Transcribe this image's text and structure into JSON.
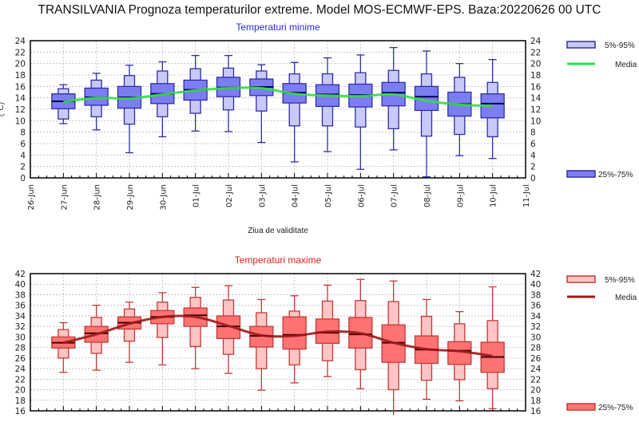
{
  "title": "TRANSILVANIA  Prognoza temperaturilor extreme.  Model MOS-ECMWF-EPS. Baza:20220626 00 UTC",
  "x_dates": [
    "26-Jun",
    "27-Jun",
    "28-Jun",
    "29-Jun",
    "30-Jun",
    "01-Jul",
    "02-Jul",
    "03-Jul",
    "04-Jul",
    "05-Jul",
    "06-Jul",
    "07-Jul",
    "08-Jul",
    "09-Jul",
    "10-Jul",
    "11-Jul"
  ],
  "chart_data": [
    {
      "type": "box",
      "title": "Temperaturi minime",
      "xlabel": "Ziua de validitate",
      "ylabel": "(°C)",
      "ylim": [
        0,
        24
      ],
      "yticks": [
        0,
        2,
        4,
        6,
        8,
        10,
        12,
        14,
        16,
        18,
        20,
        22,
        24
      ],
      "grid": true,
      "legend": {
        "placement": "right",
        "entries": [
          "5%-95%",
          "Media",
          "25%-75%"
        ]
      },
      "colors": {
        "outer_fill": "#c9c9f7",
        "inner_fill": "#7d7df2",
        "stroke": "#2f2fa8",
        "median": "#000050",
        "mean": "#33dd44",
        "title": "#2a2ad0"
      },
      "categories": [
        "27-Jun",
        "28-Jun",
        "29-Jun",
        "30-Jun",
        "01-Jul",
        "02-Jul",
        "03-Jul",
        "04-Jul",
        "05-Jul",
        "06-Jul",
        "07-Jul",
        "08-Jul",
        "09-Jul",
        "10-Jul"
      ],
      "min": [
        9.5,
        8.4,
        4.4,
        7.2,
        8.2,
        8.1,
        6.2,
        2.8,
        4.6,
        1.5,
        4.9,
        0.2,
        3.9,
        3.4
      ],
      "p5": [
        10.3,
        10.7,
        9.4,
        10.7,
        11.3,
        11.9,
        11.7,
        9.1,
        9.1,
        8.9,
        8.6,
        7.3,
        7.6,
        7.2
      ],
      "p25": [
        12.1,
        12.7,
        12.2,
        13.0,
        13.6,
        14.2,
        14.4,
        13.1,
        12.5,
        12.4,
        12.6,
        11.8,
        10.8,
        10.5
      ],
      "median": [
        13.4,
        14.1,
        14.1,
        14.7,
        15.4,
        15.8,
        15.9,
        14.9,
        14.6,
        14.5,
        14.9,
        14.2,
        12.9,
        13.0
      ],
      "p75": [
        14.7,
        15.7,
        16.0,
        16.5,
        17.1,
        17.6,
        17.3,
        16.5,
        16.3,
        16.4,
        16.7,
        16.0,
        15.0,
        14.7
      ],
      "p95": [
        15.6,
        17.1,
        17.9,
        18.7,
        19.1,
        19.2,
        18.7,
        18.2,
        18.2,
        18.4,
        18.8,
        18.2,
        17.6,
        16.7
      ],
      "max": [
        16.3,
        18.3,
        19.7,
        20.3,
        21.4,
        21.4,
        19.8,
        20.2,
        21.0,
        21.5,
        22.8,
        22.2,
        20.0,
        20.7
      ],
      "mean": [
        13.3,
        14.0,
        13.9,
        14.6,
        15.3,
        15.7,
        15.7,
        14.7,
        14.4,
        14.3,
        14.6,
        13.5,
        12.8,
        12.6
      ]
    },
    {
      "type": "box",
      "title": "Temperaturi maxime",
      "ylim": [
        16,
        42
      ],
      "yticks": [
        16,
        18,
        20,
        22,
        24,
        26,
        28,
        30,
        32,
        34,
        36,
        38,
        40,
        42
      ],
      "grid": true,
      "legend": {
        "placement": "right",
        "entries": [
          "5%-95%",
          "Media",
          "25%-75%"
        ]
      },
      "colors": {
        "outer_fill": "#ffc4c4",
        "inner_fill": "#ff7272",
        "stroke": "#c33a3a",
        "median": "#400000",
        "mean": "#9a1a1a",
        "title": "#e02020"
      },
      "categories": [
        "27-Jun",
        "28-Jun",
        "29-Jun",
        "30-Jun",
        "01-Jul",
        "02-Jul",
        "03-Jul",
        "04-Jul",
        "05-Jul",
        "06-Jul",
        "07-Jul",
        "08-Jul",
        "09-Jul",
        "10-Jul"
      ],
      "min": [
        23.3,
        23.7,
        25.2,
        24.7,
        24.0,
        23.1,
        19.9,
        21.3,
        22.5,
        20.2,
        15.2,
        18.2,
        17.9,
        16.4
      ],
      "p5": [
        26.0,
        26.9,
        29.2,
        29.9,
        28.2,
        26.7,
        24.0,
        24.7,
        25.5,
        23.8,
        20.0,
        21.8,
        21.9,
        20.2
      ],
      "p25": [
        27.9,
        29.0,
        31.5,
        32.5,
        32.0,
        29.7,
        28.1,
        27.7,
        28.8,
        27.9,
        25.2,
        25.0,
        24.8,
        23.3
      ],
      "median": [
        28.9,
        30.7,
        32.7,
        33.8,
        34.1,
        32.0,
        30.2,
        30.4,
        30.8,
        30.5,
        28.9,
        27.6,
        27.4,
        26.2
      ],
      "p75": [
        30.0,
        32.0,
        33.8,
        35.0,
        35.5,
        34.0,
        32.0,
        33.8,
        33.4,
        33.7,
        32.3,
        30.2,
        29.1,
        29.0
      ],
      "p95": [
        31.4,
        33.7,
        35.3,
        36.6,
        37.5,
        37.0,
        34.6,
        34.9,
        36.8,
        36.9,
        36.7,
        33.9,
        32.5,
        33.1
      ],
      "max": [
        32.7,
        36.0,
        36.6,
        38.4,
        39.4,
        39.7,
        37.1,
        37.8,
        39.8,
        40.9,
        40.6,
        37.1,
        34.8,
        39.5
      ],
      "mean": [
        28.9,
        30.5,
        32.5,
        33.8,
        33.8,
        32.1,
        30.3,
        30.2,
        31.0,
        30.7,
        28.9,
        27.7,
        27.3,
        26.4
      ]
    }
  ]
}
